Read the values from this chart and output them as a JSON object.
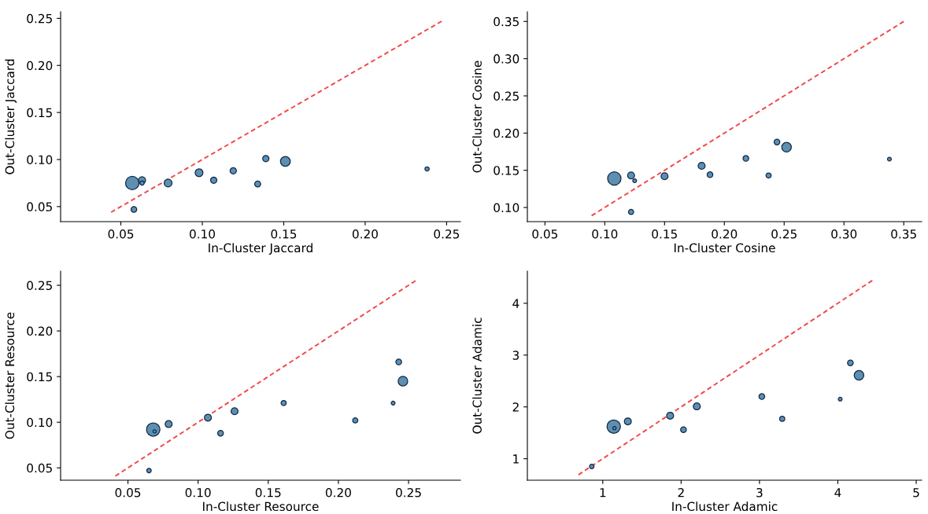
{
  "chart_data": [
    {
      "type": "bubble",
      "xlabel": "In-Cluster Jaccard",
      "ylabel": "Out-Cluster Jaccard",
      "xlim": [
        0.013,
        0.2585
      ],
      "ylim": [
        0.034,
        0.257
      ],
      "xticks": [
        {
          "value": 0.05,
          "label": "0.05"
        },
        {
          "value": 0.1,
          "label": "0.10"
        },
        {
          "value": 0.15,
          "label": "0.15"
        },
        {
          "value": 0.2,
          "label": "0.20"
        },
        {
          "value": 0.25,
          "label": "0.25"
        }
      ],
      "yticks": [
        {
          "value": 0.05,
          "label": "0.05"
        },
        {
          "value": 0.1,
          "label": "0.10"
        },
        {
          "value": 0.15,
          "label": "0.15"
        },
        {
          "value": 0.2,
          "label": "0.20"
        },
        {
          "value": 0.25,
          "label": "0.25"
        }
      ],
      "series": [
        {
          "type": "line",
          "color": "#f04848",
          "line_style": "dashed",
          "x": [
            0.044,
            0.247
          ],
          "values": [
            0.044,
            0.247
          ]
        },
        {
          "color": "#5f8fb0",
          "x": [
            0.057,
            0.063,
            0.063,
            0.058,
            0.079,
            0.098,
            0.107,
            0.119,
            0.134,
            0.139,
            0.151,
            0.238
          ],
          "values": [
            0.075,
            0.078,
            0.075,
            0.047,
            0.075,
            0.086,
            0.078,
            0.088,
            0.074,
            0.101,
            0.098,
            0.09
          ],
          "sizes": [
            1,
            0.28,
            0.1,
            0.18,
            0.34,
            0.34,
            0.22,
            0.22,
            0.2,
            0.22,
            0.54,
            0.1
          ]
        }
      ]
    },
    {
      "type": "bubble",
      "xlabel": "In-Cluster Cosine",
      "ylabel": "Out-Cluster Cosine",
      "xlim": [
        0.0353,
        0.365
      ],
      "ylim": [
        0.081,
        0.363
      ],
      "xticks": [
        {
          "value": 0.05,
          "label": "0.05"
        },
        {
          "value": 0.1,
          "label": "0.10"
        },
        {
          "value": 0.15,
          "label": "0.15"
        },
        {
          "value": 0.2,
          "label": "0.20"
        },
        {
          "value": 0.25,
          "label": "0.25"
        },
        {
          "value": 0.3,
          "label": "0.30"
        },
        {
          "value": 0.35,
          "label": "0.35"
        }
      ],
      "yticks": [
        {
          "value": 0.1,
          "label": "0.10"
        },
        {
          "value": 0.15,
          "label": "0.15"
        },
        {
          "value": 0.2,
          "label": "0.20"
        },
        {
          "value": 0.25,
          "label": "0.25"
        },
        {
          "value": 0.3,
          "label": "0.30"
        },
        {
          "value": 0.35,
          "label": "0.35"
        }
      ],
      "series": [
        {
          "type": "line",
          "color": "#f04848",
          "line_style": "dashed",
          "x": [
            0.089,
            0.35
          ],
          "values": [
            0.089,
            0.35
          ]
        },
        {
          "color": "#5f8fb0",
          "x": [
            0.108,
            0.122,
            0.125,
            0.122,
            0.15,
            0.181,
            0.188,
            0.218,
            0.237,
            0.244,
            0.252,
            0.338
          ],
          "values": [
            0.139,
            0.143,
            0.136,
            0.094,
            0.142,
            0.156,
            0.144,
            0.166,
            0.143,
            0.188,
            0.181,
            0.165
          ],
          "sizes": [
            1,
            0.27,
            0.08,
            0.15,
            0.27,
            0.27,
            0.18,
            0.18,
            0.15,
            0.18,
            0.51,
            0.08
          ]
        }
      ]
    },
    {
      "type": "bubble",
      "xlabel": "In-Cluster Resource",
      "ylabel": "Out-Cluster Resource",
      "xlim": [
        0.002,
        0.287
      ],
      "ylim": [
        0.0365,
        0.2655
      ],
      "xticks": [
        {
          "value": 0.05,
          "label": "0.05"
        },
        {
          "value": 0.1,
          "label": "0.10"
        },
        {
          "value": 0.15,
          "label": "0.15"
        },
        {
          "value": 0.2,
          "label": "0.20"
        },
        {
          "value": 0.25,
          "label": "0.25"
        }
      ],
      "yticks": [
        {
          "value": 0.05,
          "label": "0.05"
        },
        {
          "value": 0.1,
          "label": "0.10"
        },
        {
          "value": 0.15,
          "label": "0.15"
        },
        {
          "value": 0.2,
          "label": "0.20"
        },
        {
          "value": 0.25,
          "label": "0.25"
        }
      ],
      "series": [
        {
          "type": "line",
          "color": "#f04848",
          "line_style": "dashed",
          "x": [
            0.041,
            0.255
          ],
          "values": [
            0.041,
            0.255
          ]
        },
        {
          "color": "#5f8fb0",
          "x": [
            0.068,
            0.069,
            0.079,
            0.065,
            0.107,
            0.116,
            0.126,
            0.161,
            0.212,
            0.239,
            0.243,
            0.246
          ],
          "values": [
            0.092,
            0.09,
            0.098,
            0.047,
            0.105,
            0.088,
            0.112,
            0.121,
            0.102,
            0.121,
            0.166,
            0.145
          ],
          "sizes": [
            1,
            0.06,
            0.27,
            0.11,
            0.27,
            0.18,
            0.27,
            0.15,
            0.15,
            0.08,
            0.18,
            0.51
          ]
        }
      ]
    },
    {
      "type": "bubble",
      "xlabel": "In-Cluster Adamic",
      "ylabel": "Out-Cluster Adamic",
      "xlim": [
        0.038,
        5.07
      ],
      "ylim": [
        0.585,
        4.62
      ],
      "xticks": [
        1,
        2,
        3,
        4,
        5
      ],
      "yticks": [
        1,
        2,
        3,
        4
      ],
      "series": [
        {
          "type": "line",
          "color": "#f04848",
          "line_style": "dashed",
          "x": [
            0.69,
            4.44
          ],
          "values": [
            0.69,
            4.44
          ]
        },
        {
          "color": "#5f8fb0",
          "x": [
            1.14,
            1.15,
            1.32,
            0.86,
            1.86,
            2.03,
            2.2,
            3.03,
            3.29,
            4.03,
            4.16,
            4.27
          ],
          "values": [
            1.62,
            1.59,
            1.72,
            0.85,
            1.83,
            1.56,
            2.01,
            2.2,
            1.77,
            2.15,
            2.85,
            2.61
          ],
          "sizes": [
            1,
            0.06,
            0.27,
            0.11,
            0.27,
            0.18,
            0.27,
            0.18,
            0.15,
            0.08,
            0.18,
            0.51
          ]
        }
      ]
    }
  ]
}
